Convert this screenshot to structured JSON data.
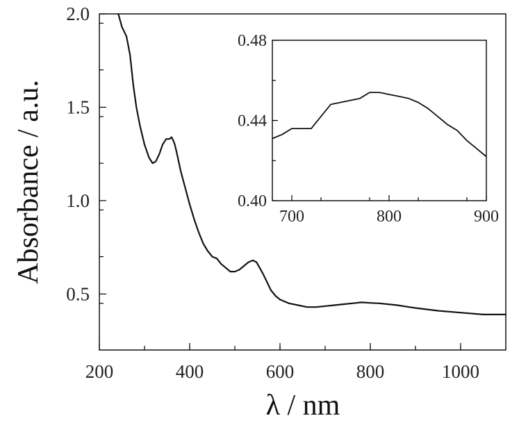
{
  "chart_data": [
    {
      "type": "line",
      "xlabel": "λ / nm",
      "ylabel": "Absorbance / a.u.",
      "xlim": [
        200,
        1100
      ],
      "ylim": [
        0.2,
        2.0
      ],
      "xticks": [
        "200",
        "400",
        "600",
        "800",
        "1000"
      ],
      "yticks": [
        "0.5",
        "1.0",
        "1.5",
        "2.0"
      ],
      "grid": false,
      "series": [
        {
          "x": [
            242,
            250,
            260,
            268,
            275,
            282,
            290,
            300,
            310,
            318,
            325,
            333,
            340,
            348,
            355,
            360,
            364,
            367,
            372,
            380,
            390,
            400,
            410,
            420,
            430,
            440,
            450,
            460,
            470,
            480,
            490,
            500,
            510,
            520,
            530,
            540,
            548,
            555,
            562,
            570,
            580,
            590,
            600,
            610,
            620,
            640,
            660,
            680,
            700,
            720,
            740,
            760,
            780,
            800,
            820,
            840,
            860,
            880,
            900,
            950,
            1000,
            1050,
            1100
          ],
          "y": [
            2.0,
            1.93,
            1.88,
            1.78,
            1.62,
            1.5,
            1.4,
            1.3,
            1.23,
            1.2,
            1.21,
            1.25,
            1.3,
            1.33,
            1.33,
            1.34,
            1.32,
            1.3,
            1.25,
            1.16,
            1.07,
            0.98,
            0.9,
            0.83,
            0.77,
            0.73,
            0.7,
            0.69,
            0.66,
            0.64,
            0.62,
            0.62,
            0.63,
            0.65,
            0.67,
            0.68,
            0.67,
            0.64,
            0.61,
            0.57,
            0.52,
            0.49,
            0.47,
            0.46,
            0.45,
            0.44,
            0.43,
            0.43,
            0.435,
            0.44,
            0.445,
            0.45,
            0.455,
            0.452,
            0.45,
            0.445,
            0.44,
            0.432,
            0.425,
            0.41,
            0.4,
            0.39,
            0.39
          ]
        }
      ]
    },
    {
      "type": "line",
      "xlim": [
        680,
        900
      ],
      "ylim": [
        0.4,
        0.48
      ],
      "xticks": [
        "700",
        "800",
        "900"
      ],
      "yticks": [
        "0.40",
        "0.44",
        "0.48"
      ],
      "grid": false,
      "series": [
        {
          "x": [
            680,
            690,
            700,
            710,
            720,
            730,
            740,
            750,
            760,
            770,
            780,
            790,
            800,
            810,
            820,
            830,
            840,
            850,
            860,
            870,
            880,
            890,
            900
          ],
          "y": [
            0.431,
            0.433,
            0.436,
            0.436,
            0.436,
            0.442,
            0.448,
            0.449,
            0.45,
            0.451,
            0.454,
            0.454,
            0.453,
            0.452,
            0.451,
            0.449,
            0.446,
            0.442,
            0.438,
            0.435,
            0.43,
            0.426,
            0.422
          ]
        }
      ]
    }
  ]
}
